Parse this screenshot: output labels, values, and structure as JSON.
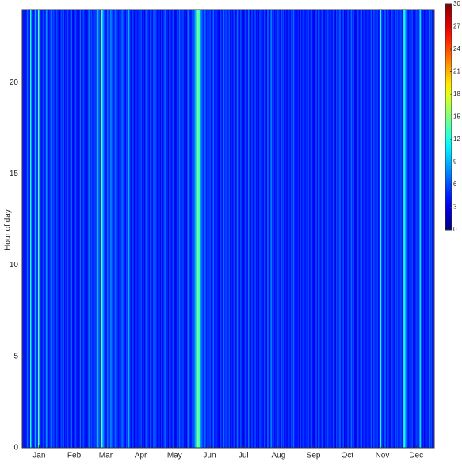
{
  "chart_data": {
    "type": "heatmap",
    "y_label": "Hour of day",
    "xlim": [
      0,
      365
    ],
    "xticks": [
      {
        "value": 15,
        "label": "Jan"
      },
      {
        "value": 46,
        "label": "Feb"
      },
      {
        "value": 74,
        "label": "Mar"
      },
      {
        "value": 105,
        "label": "Apr"
      },
      {
        "value": 135,
        "label": "May"
      },
      {
        "value": 166,
        "label": "Jun"
      },
      {
        "value": 196,
        "label": "Jul"
      },
      {
        "value": 227,
        "label": "Aug"
      },
      {
        "value": 258,
        "label": "Sep"
      },
      {
        "value": 288,
        "label": "Oct"
      },
      {
        "value": 319,
        "label": "Nov"
      },
      {
        "value": 349,
        "label": "Dec"
      }
    ],
    "ylim": [
      0,
      24
    ],
    "yticks": [
      0,
      5,
      10,
      15,
      20
    ],
    "zlim": [
      0,
      30
    ],
    "zticks": [
      0,
      3,
      6,
      9,
      12,
      15,
      18,
      21,
      24,
      27,
      30
    ],
    "colormap": "jet",
    "values": [
      5,
      4,
      6,
      3,
      7,
      5,
      4,
      12,
      6,
      5,
      4,
      9,
      6,
      5,
      14,
      7,
      5,
      4,
      6,
      3,
      5,
      8,
      6,
      4,
      5,
      7,
      4,
      6,
      5,
      3,
      6,
      5,
      4,
      3,
      6,
      5,
      7,
      4,
      5,
      3,
      6,
      4,
      5,
      8,
      4,
      3,
      5,
      6,
      4,
      5,
      3,
      7,
      4,
      5,
      6,
      4,
      5,
      3,
      6,
      7,
      5,
      6,
      4,
      8,
      5,
      6,
      12,
      7,
      6,
      5,
      14,
      9,
      6,
      5,
      4,
      7,
      6,
      5,
      8,
      6,
      4,
      5,
      7,
      6,
      5,
      4,
      6,
      5,
      7,
      6,
      5,
      4,
      6,
      5,
      9,
      5,
      4,
      6,
      5,
      3,
      6,
      5,
      4,
      7,
      5,
      6,
      4,
      5,
      3,
      6,
      8,
      5,
      4,
      6,
      5,
      4,
      7,
      5,
      6,
      4,
      4,
      5,
      3,
      6,
      4,
      5,
      7,
      4,
      5,
      3,
      6,
      5,
      4,
      6,
      5,
      3,
      4,
      6,
      5,
      7,
      4,
      5,
      6,
      4,
      5,
      3,
      6,
      8,
      5,
      4,
      6,
      5,
      7,
      9,
      13,
      15,
      14,
      11,
      8,
      6,
      5,
      7,
      6,
      4,
      8,
      5,
      6,
      4,
      5,
      7,
      4,
      6,
      5,
      4,
      3,
      6,
      5,
      4,
      7,
      5,
      6,
      4,
      5,
      6,
      3,
      5,
      4,
      6,
      5,
      3,
      7,
      5,
      4,
      6,
      5,
      4,
      3,
      6,
      5,
      4,
      7,
      5,
      3,
      6,
      4,
      5,
      6,
      4,
      5,
      3,
      6,
      5,
      5,
      4,
      6,
      5,
      3,
      7,
      5,
      4,
      8,
      5,
      6,
      4,
      5,
      3,
      6,
      5,
      4,
      7,
      5,
      6,
      4,
      5,
      3,
      6,
      5,
      4,
      6,
      5,
      7,
      4,
      5,
      4,
      5,
      3,
      6,
      4,
      5,
      7,
      4,
      5,
      3,
      6,
      4,
      5,
      6,
      4,
      3,
      5,
      6,
      4,
      7,
      5,
      4,
      6,
      5,
      3,
      5,
      4,
      6,
      5,
      4,
      5,
      4,
      6,
      5,
      3,
      6,
      4,
      5,
      7,
      4,
      5,
      6,
      3,
      5,
      4,
      6,
      5,
      4,
      7,
      5,
      6,
      4,
      3,
      5,
      6,
      4,
      5,
      7,
      4,
      5,
      6,
      4,
      5,
      6,
      4,
      5,
      7,
      4,
      6,
      5,
      3,
      6,
      4,
      5,
      12,
      6,
      4,
      5,
      7,
      4,
      6,
      5,
      4,
      3,
      6,
      5,
      4,
      7,
      5,
      6,
      4,
      5,
      6,
      4,
      10,
      12,
      9,
      6,
      5,
      4,
      7,
      5,
      6,
      4,
      3,
      5,
      6,
      4,
      5,
      11,
      6,
      4,
      5,
      3,
      6,
      5,
      4,
      7,
      5,
      6,
      4,
      5
    ]
  }
}
